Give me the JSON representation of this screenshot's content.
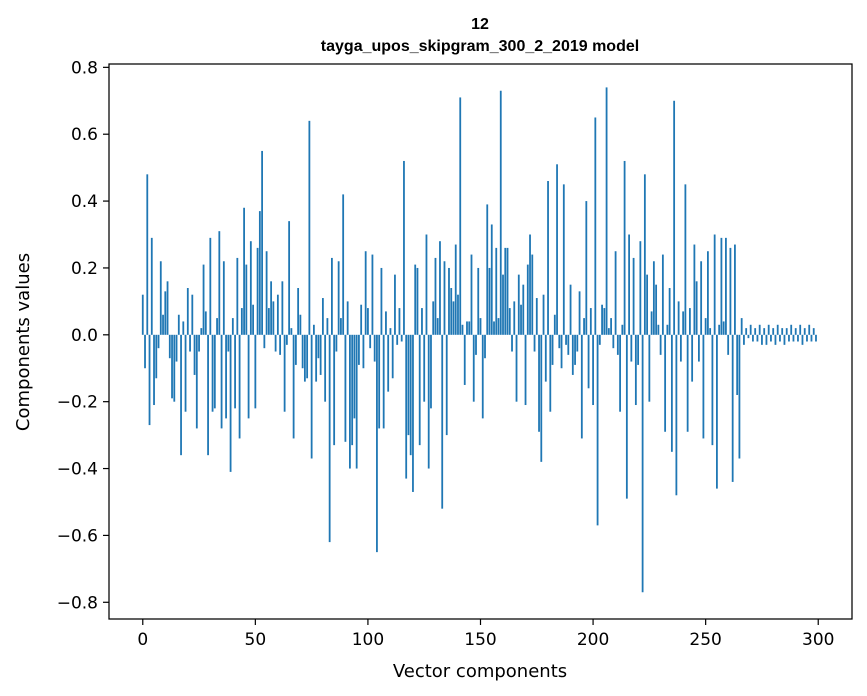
{
  "chart_data": {
    "type": "bar",
    "title_line1": "12",
    "title_line2": "tayga_upos_skipgram_300_2_2019 model",
    "xlabel": "Vector components",
    "ylabel": "Components values",
    "xlim": [
      -15,
      315
    ],
    "ylim": [
      -0.85,
      0.81
    ],
    "x_ticks": [
      0,
      50,
      100,
      150,
      200,
      250,
      300
    ],
    "x_tick_labels": [
      "0",
      "50",
      "100",
      "150",
      "200",
      "250",
      "300"
    ],
    "y_ticks": [
      -0.8,
      -0.6,
      -0.4,
      -0.2,
      0.0,
      0.2,
      0.4,
      0.6,
      0.8
    ],
    "y_tick_labels": [
      "−0.8",
      "−0.6",
      "−0.4",
      "−0.2",
      "0.0",
      "0.2",
      "0.4",
      "0.6",
      "0.8"
    ],
    "bar_color": "#1f77b4",
    "n_components": 300,
    "values": [
      0.12,
      -0.1,
      0.48,
      -0.27,
      0.29,
      -0.21,
      -0.13,
      -0.04,
      0.22,
      0.06,
      0.13,
      0.16,
      -0.07,
      -0.19,
      -0.2,
      -0.08,
      0.06,
      -0.36,
      0.04,
      -0.23,
      0.14,
      -0.05,
      0.12,
      -0.12,
      -0.28,
      -0.05,
      0.02,
      0.21,
      0.07,
      -0.36,
      0.29,
      -0.23,
      -0.22,
      0.05,
      0.31,
      -0.28,
      0.22,
      -0.25,
      -0.05,
      -0.41,
      0.05,
      -0.22,
      0.23,
      -0.31,
      0.08,
      0.38,
      0.21,
      -0.25,
      0.28,
      0.09,
      -0.22,
      0.26,
      0.37,
      0.55,
      -0.04,
      0.25,
      0.08,
      0.16,
      0.1,
      -0.05,
      0.12,
      -0.06,
      0.16,
      -0.23,
      -0.03,
      0.34,
      0.02,
      -0.31,
      -0.09,
      0.14,
      0.06,
      -0.1,
      -0.14,
      -0.13,
      0.64,
      -0.37,
      0.03,
      -0.14,
      -0.07,
      -0.12,
      0.11,
      -0.2,
      0.05,
      -0.62,
      0.23,
      -0.33,
      -0.05,
      0.22,
      0.05,
      0.42,
      -0.32,
      0.1,
      -0.4,
      -0.33,
      -0.25,
      -0.4,
      -0.09,
      0.09,
      -0.1,
      0.25,
      0.08,
      -0.04,
      0.24,
      -0.08,
      -0.65,
      -0.28,
      0.2,
      -0.28,
      0.07,
      -0.17,
      0.02,
      -0.13,
      0.18,
      -0.03,
      0.08,
      -0.02,
      0.52,
      -0.43,
      -0.3,
      -0.36,
      -0.47,
      0.21,
      0.2,
      -0.33,
      0.08,
      -0.2,
      0.3,
      -0.4,
      -0.22,
      0.1,
      0.23,
      0.05,
      0.28,
      -0.52,
      0.22,
      -0.3,
      0.2,
      0.14,
      0.1,
      0.27,
      0.12,
      0.71,
      0.03,
      -0.15,
      0.04,
      0.04,
      0.24,
      -0.2,
      -0.06,
      0.2,
      0.05,
      -0.25,
      -0.07,
      0.39,
      0.2,
      0.33,
      0.04,
      0.26,
      0.05,
      0.73,
      0.18,
      0.26,
      0.26,
      0.08,
      -0.05,
      0.1,
      -0.2,
      0.18,
      0.09,
      0.15,
      -0.21,
      0.21,
      0.3,
      0.24,
      -0.05,
      0.11,
      -0.29,
      -0.38,
      0.12,
      -0.14,
      0.46,
      -0.23,
      -0.09,
      0.06,
      0.51,
      -0.04,
      -0.1,
      0.45,
      -0.03,
      -0.06,
      0.15,
      -0.12,
      -0.09,
      -0.05,
      0.13,
      -0.31,
      0.05,
      0.4,
      -0.16,
      0.08,
      -0.21,
      0.65,
      -0.57,
      -0.03,
      0.09,
      0.08,
      0.74,
      0.02,
      0.05,
      -0.04,
      0.25,
      -0.06,
      -0.23,
      0.03,
      0.52,
      -0.49,
      0.3,
      -0.08,
      0.23,
      -0.21,
      -0.09,
      0.28,
      -0.77,
      0.48,
      0.18,
      -0.2,
      0.07,
      0.22,
      0.15,
      0.03,
      -0.06,
      0.24,
      -0.29,
      0.03,
      0.14,
      -0.35,
      0.7,
      -0.48,
      0.1,
      -0.08,
      0.07,
      0.45,
      -0.29,
      0.08,
      -0.14,
      0.27,
      0.16,
      -0.08,
      0.22,
      -0.31,
      0.05,
      0.25,
      0.02,
      -0.33,
      0.3,
      -0.46,
      0.03,
      0.29,
      0.04,
      0.29,
      -0.06,
      0.26,
      -0.44,
      0.27,
      -0.18,
      -0.37,
      0.05,
      -0.03,
      0.02,
      -0.01,
      0.03,
      -0.02,
      0.02,
      -0.02,
      0.03,
      -0.03,
      0.02,
      -0.03,
      0.03,
      -0.02,
      0.02,
      -0.03,
      0.03,
      -0.02,
      0.02,
      -0.03,
      0.02,
      -0.02,
      0.03,
      -0.02,
      0.02,
      -0.02,
      0.03,
      -0.03,
      0.02,
      -0.02,
      0.03,
      -0.02,
      0.02,
      -0.02
    ]
  }
}
